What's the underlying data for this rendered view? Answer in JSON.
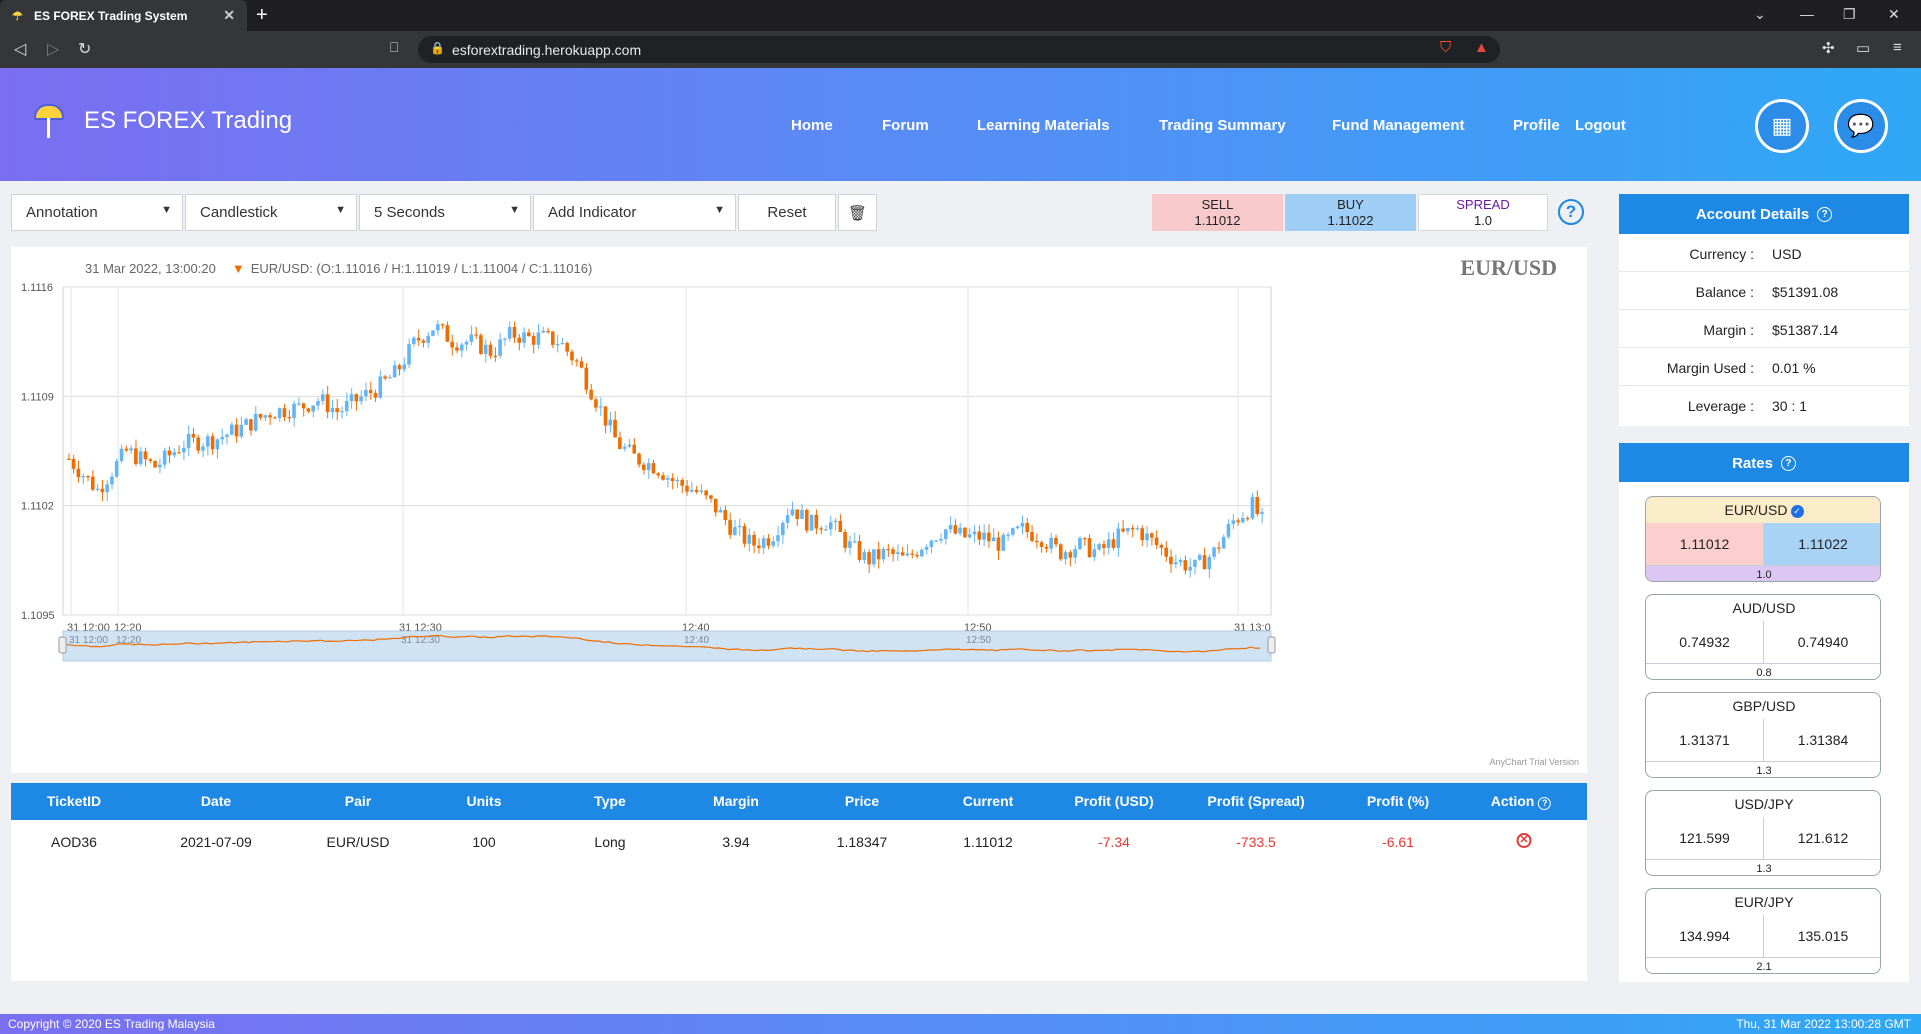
{
  "browser": {
    "tab_title": "ES FOREX Trading System",
    "url": "esforextrading.herokuapp.com"
  },
  "header": {
    "brand": "ES FOREX Trading",
    "nav": [
      "Home",
      "Forum",
      "Learning Materials",
      "Trading Summary",
      "Fund Management",
      "Profile",
      "Logout"
    ]
  },
  "toolbar": {
    "annotation": "Annotation",
    "chart_type": "Candlestick",
    "interval": "5 Seconds",
    "indicator": "Add Indicator",
    "reset": "Reset",
    "sell_label": "SELL",
    "sell_value": "1.11012",
    "buy_label": "BUY",
    "buy_value": "1.11022",
    "spread_label": "SPREAD",
    "spread_value": "1.0",
    "sell_bg": "#f8c9cb",
    "buy_bg": "#9ecdf5",
    "spread_color": "#6a1b9a"
  },
  "chart": {
    "header_time": "31 Mar 2022, 13:00:20",
    "header_ohlc": "EUR/USD: (O:1.11016 / H:1.11019 / L:1.11004 / C:1.11016)",
    "pair_title": "EUR/USD",
    "trial_text": "AnyChart Trial Version"
  },
  "chart_data": {
    "type": "candlestick",
    "title": "EUR/USD",
    "ylim": [
      1.1095,
      1.1116
    ],
    "yticks": [
      "1.1116",
      "1.1109",
      "1.1102",
      "1.1095"
    ],
    "xticks": [
      "31 12:00",
      "12:20",
      "31 12:30",
      "12:40",
      "12:50",
      "31 13:0"
    ],
    "navigator_ticks": [
      "31 12:00",
      "12:20",
      "31 12:30",
      "12:40",
      "12:50"
    ],
    "up_color": "#64b5f6",
    "down_color": "#ef6c00",
    "grid": true,
    "close_path": [
      [
        0,
        1.1105
      ],
      [
        6,
        1.1103
      ],
      [
        12,
        1.11055
      ],
      [
        18,
        1.11045
      ],
      [
        24,
        1.1106
      ],
      [
        30,
        1.11062
      ],
      [
        36,
        1.1107
      ],
      [
        42,
        1.1108
      ],
      [
        48,
        1.11083
      ],
      [
        52,
        1.11088
      ],
      [
        56,
        1.1108
      ],
      [
        60,
        1.11088
      ],
      [
        64,
        1.11095
      ],
      [
        68,
        1.11105
      ],
      [
        72,
        1.11125
      ],
      [
        76,
        1.11135
      ],
      [
        80,
        1.11125
      ],
      [
        84,
        1.11125
      ],
      [
        88,
        1.11118
      ],
      [
        92,
        1.1113
      ],
      [
        96,
        1.11127
      ],
      [
        98,
        1.11128
      ],
      [
        102,
        1.11125
      ],
      [
        106,
        1.1111
      ],
      [
        110,
        1.11085
      ],
      [
        114,
        1.1106
      ],
      [
        118,
        1.1105
      ],
      [
        122,
        1.11045
      ],
      [
        126,
        1.11035
      ],
      [
        130,
        1.1103
      ],
      [
        134,
        1.1102
      ],
      [
        138,
        1.11005
      ],
      [
        142,
        1.10995
      ],
      [
        146,
        1.11
      ],
      [
        150,
        1.1102
      ],
      [
        154,
        1.11008
      ],
      [
        158,
        1.1101
      ],
      [
        162,
        1.10995
      ],
      [
        166,
        1.10985
      ],
      [
        170,
        1.1099
      ],
      [
        174,
        1.10985
      ],
      [
        178,
        1.10997
      ],
      [
        182,
        1.11005
      ],
      [
        186,
        1.11
      ],
      [
        190,
        1.11
      ],
      [
        194,
        1.10995
      ],
      [
        198,
        1.11005
      ],
      [
        202,
        1.11
      ],
      [
        206,
        1.1099
      ],
      [
        210,
        1.10995
      ],
      [
        214,
        1.1099
      ],
      [
        218,
        1.11
      ],
      [
        222,
        1.11005
      ],
      [
        226,
        1.10995
      ],
      [
        230,
        1.10985
      ],
      [
        234,
        1.1098
      ],
      [
        238,
        1.1099
      ],
      [
        242,
        1.1101
      ],
      [
        246,
        1.1102
      ],
      [
        248,
        1.1101
      ]
    ]
  },
  "table": {
    "headers": [
      "TicketID",
      "Date",
      "Pair",
      "Units",
      "Type",
      "Margin",
      "Price",
      "Current",
      "Profit (USD)",
      "Profit (Spread)",
      "Profit (%)",
      "Action"
    ],
    "rows": [
      [
        "AOD36",
        "2021-07-09",
        "EUR/USD",
        "100",
        "Long",
        "3.94",
        "1.18347",
        "1.11012",
        "-7.34",
        "-733.5",
        "-6.61"
      ]
    ],
    "negative_color": "#e53935"
  },
  "account": {
    "title": "Account Details",
    "rows": [
      {
        "k": "Currency :",
        "v": "USD"
      },
      {
        "k": "Balance :",
        "v": "$51391.08"
      },
      {
        "k": "Margin :",
        "v": "$51387.14"
      },
      {
        "k": "Margin Used :",
        "v": "0.01 %"
      },
      {
        "k": "Leverage :",
        "v": "30 : 1"
      }
    ]
  },
  "rates": {
    "title": "Rates",
    "items": [
      {
        "pair": "EUR/USD",
        "sell": "1.11012",
        "buy": "1.11022",
        "spread": "1.0"
      },
      {
        "pair": "AUD/USD",
        "sell": "0.74932",
        "buy": "0.74940",
        "spread": "0.8"
      },
      {
        "pair": "GBP/USD",
        "sell": "1.31371",
        "buy": "1.31384",
        "spread": "1.3"
      },
      {
        "pair": "USD/JPY",
        "sell": "121.599",
        "buy": "121.612",
        "spread": "1.3"
      },
      {
        "pair": "EUR/JPY",
        "sell": "134.994",
        "buy": "135.015",
        "spread": "2.1"
      }
    ]
  },
  "footer": {
    "copyright": "Copyright © 2020 ES Trading Malaysia",
    "datetime": "Thu, 31 Mar 2022 13:00:28 GMT"
  }
}
